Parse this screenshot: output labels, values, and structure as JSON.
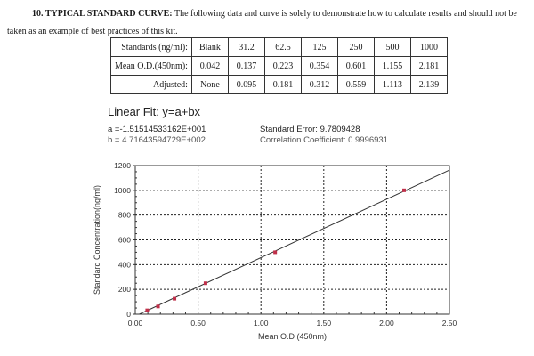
{
  "document": {
    "heading_bold": "10. TYPICAL STANDARD CURVE:",
    "heading_line1_rest": " The following data and curve is solely to demonstrate how to calculate results and should not be",
    "heading_line2": "taken as an example of best practices of this kit."
  },
  "table": {
    "rows": [
      {
        "label": "Standards (ng/ml):",
        "cells": [
          "Blank",
          "31.2",
          "62.5",
          "125",
          "250",
          "500",
          "1000"
        ]
      },
      {
        "label": "Mean O.D.(450nm):",
        "cells": [
          "0.042",
          "0.137",
          "0.223",
          "0.354",
          "0.601",
          "1.155",
          "2.181"
        ]
      },
      {
        "label": "Adjusted:",
        "cells": [
          "None",
          "0.095",
          "0.181",
          "0.312",
          "0.559",
          "1.113",
          "2.139"
        ]
      }
    ]
  },
  "fit": {
    "title": "Linear Fit: y=a+bx",
    "a": "a =-1.51514533162E+001",
    "b": "b = 4.71643594729E+002",
    "standard_error": "Standard Error: 9.7809428",
    "correlation": "Correlation Coefficient: 0.9996931"
  },
  "chart_data": {
    "type": "scatter",
    "title": "Linear Fit: y=a+bx",
    "xlabel": "Mean O.D (450nm)",
    "ylabel": "Standard Concentration(ng/ml)",
    "xlim": [
      0,
      2.5
    ],
    "ylim": [
      0,
      1200
    ],
    "x_ticks": [
      "0.00",
      "0.50",
      "1.00",
      "1.50",
      "2.00",
      "2.50"
    ],
    "y_ticks": [
      "0",
      "200",
      "400",
      "600",
      "800",
      "1000",
      "1200"
    ],
    "grid": true,
    "series": [
      {
        "name": "Standards",
        "x": [
          0.095,
          0.181,
          0.312,
          0.559,
          1.113,
          2.139
        ],
        "y": [
          31.2,
          62.5,
          125,
          250,
          500,
          1000
        ]
      }
    ],
    "fit_line": {
      "a": -15.1514533162,
      "b": 471.643594729,
      "x_range": [
        0.032,
        2.5
      ]
    },
    "colors": {
      "points": "#c0304a",
      "line": "#333333",
      "grid": "#222222"
    }
  }
}
